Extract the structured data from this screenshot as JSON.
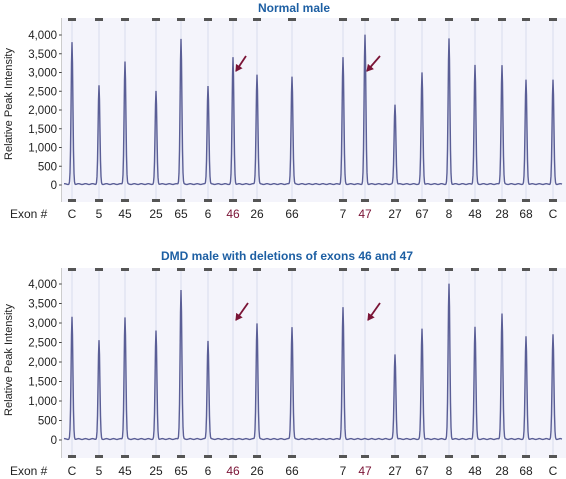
{
  "colors": {
    "title": "#1d5fa3",
    "trace": "#5a5e96",
    "highlight_label": "#7a1436",
    "arrow": "#7a1436",
    "plot_background": "#f4f4fb"
  },
  "chart_data": [
    {
      "type": "line",
      "title": "Normal male",
      "ylabel": "Relative Peak Intensity",
      "xlabel_prefix": "Exon #",
      "ylim": [
        0,
        4300
      ],
      "yticks": [
        0,
        500,
        1000,
        1500,
        2000,
        2500,
        3000,
        3500,
        4000
      ],
      "ytick_labels": [
        "0",
        "500",
        "1,000",
        "1,500",
        "2,000",
        "2,500",
        "3,000",
        "3,500",
        "4,000"
      ],
      "grid": false,
      "series": [
        {
          "categories": [
            "C",
            "5",
            "45",
            "25",
            "65",
            "6",
            "46",
            "26",
            "66",
            "7",
            "47",
            "27",
            "67",
            "8",
            "48",
            "28",
            "68",
            "C"
          ],
          "values": [
            3800,
            2650,
            3300,
            2500,
            3900,
            2650,
            3400,
            2950,
            2900,
            3400,
            4000,
            2150,
            3000,
            3900,
            3200,
            3200,
            2800,
            2800
          ],
          "highlighted": [
            "46",
            "47"
          ],
          "arrows_at": [
            "46",
            "47"
          ]
        }
      ]
    },
    {
      "type": "line",
      "title": "DMD male with deletions of exons 46 and 47",
      "ylabel": "Relative Peak Intensity",
      "xlabel_prefix": "Exon #",
      "ylim": [
        0,
        4300
      ],
      "yticks": [
        0,
        500,
        1000,
        1500,
        2000,
        2500,
        3000,
        3500,
        4000
      ],
      "ytick_labels": [
        "0",
        "500",
        "1,000",
        "1,500",
        "2,000",
        "2,500",
        "3,000",
        "3,500",
        "4,000"
      ],
      "grid": false,
      "series": [
        {
          "categories": [
            "C",
            "5",
            "45",
            "25",
            "65",
            "6",
            "46",
            "26",
            "66",
            "7",
            "47",
            "27",
            "67",
            "8",
            "48",
            "28",
            "68",
            "C"
          ],
          "values": [
            3150,
            2550,
            3150,
            2800,
            3850,
            2550,
            0,
            3000,
            2900,
            3400,
            0,
            2200,
            2850,
            4000,
            2900,
            3250,
            2650,
            2700
          ],
          "highlighted": [
            "46",
            "47"
          ],
          "arrows_at": [
            "46",
            "47"
          ]
        }
      ]
    }
  ]
}
